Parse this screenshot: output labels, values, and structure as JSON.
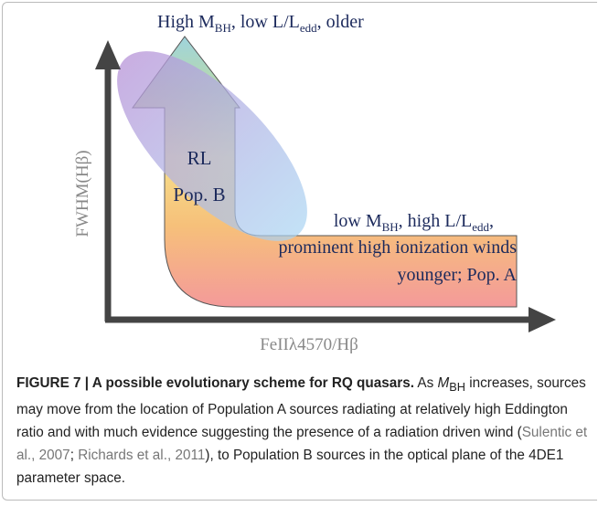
{
  "figure": {
    "top_label": [
      "High M",
      "BH",
      ", low L/L",
      "edd",
      ", older"
    ],
    "inner_labels": [
      "RL",
      "Pop. B"
    ],
    "right_label": {
      "line1": [
        "low M",
        "BH",
        ", high L/L",
        "edd",
        ","
      ],
      "line2": "prominent high ionization winds",
      "line3": "younger; Pop. A"
    },
    "y_axis_label": "FWHM(Hβ)",
    "x_axis_label": "FeIIλ4570/Hβ"
  },
  "caption": {
    "heading": "FIGURE 7 | A possible evolutionary scheme for RQ quasars.",
    "parts": [
      " As ",
      "M",
      "BH",
      " increases, sources may move from the location of Population A sources radiating at relatively high Eddington ratio and with much evidence suggesting the presence of a radiation driven wind (",
      "Sulentic et al., 2007",
      "; ",
      "Richards et al., 2011",
      "), to Population B sources in the optical plane of the 4DE1 parameter space."
    ]
  }
}
